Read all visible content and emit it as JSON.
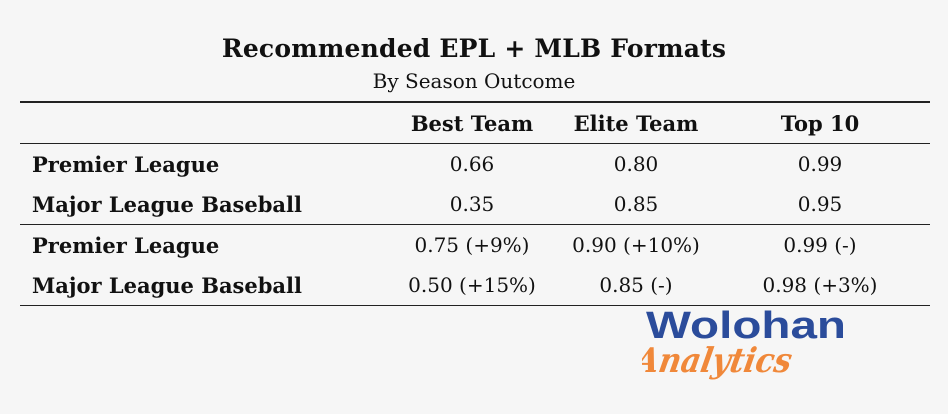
{
  "title": "Recommended EPL + MLB Formats",
  "subtitle": "By Season Outcome",
  "table": {
    "columns": [
      "",
      "Best Team",
      "Elite Team",
      "Top 10"
    ],
    "group1": [
      {
        "label": "Premier League",
        "values": [
          "0.66",
          "0.80",
          "0.99"
        ]
      },
      {
        "label": "Major League Baseball",
        "values": [
          "0.35",
          "0.85",
          "0.95"
        ]
      }
    ],
    "group2": [
      {
        "label": "Premier League",
        "values": [
          "0.75 (+9%)",
          "0.90 (+10%)",
          "0.99 (-)"
        ]
      },
      {
        "label": "Major League Baseball",
        "values": [
          "0.50 (+15%)",
          "0.85 (-)",
          "0.98 (+3%)"
        ]
      }
    ]
  },
  "logo": {
    "line1": "Wolohan",
    "line2": "Analytics",
    "color1": "#2b4c9b",
    "color2": "#f0883a"
  }
}
